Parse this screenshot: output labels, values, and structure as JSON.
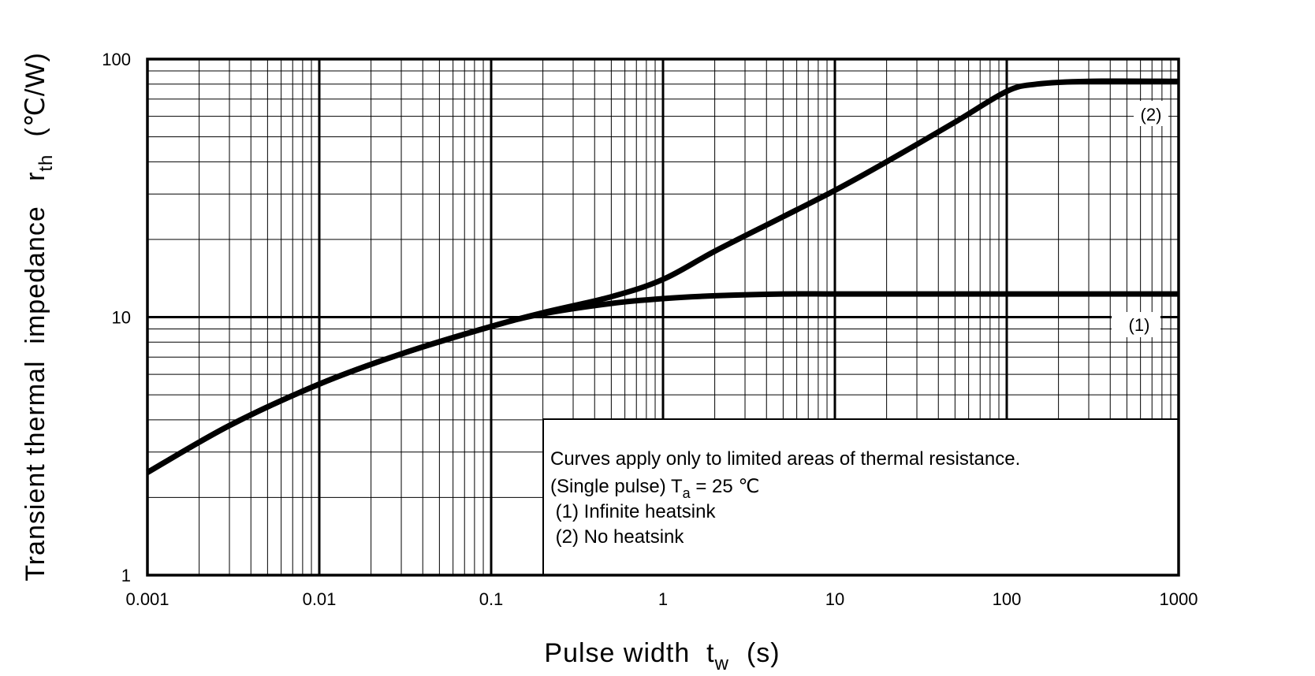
{
  "chart_data": {
    "type": "line",
    "x_scale": "log",
    "y_scale": "log",
    "xlim": [
      0.001,
      1000
    ],
    "ylim": [
      1,
      100
    ],
    "grid": true,
    "x_axis": {
      "title_main": "Pulse width  t",
      "title_sub": "w",
      "title_unit": "(s)",
      "ticks": [
        0.001,
        0.01,
        0.1,
        1,
        10,
        100,
        1000
      ],
      "tick_labels": [
        "0.001",
        "0.01",
        "0.1",
        "1",
        "10",
        "100",
        "1000"
      ]
    },
    "y_axis": {
      "title_main": "Transient thermal  impedance   r",
      "title_sub": "th",
      "title_unit": "(℃/W)",
      "ticks": [
        1,
        10,
        100
      ],
      "tick_labels": [
        "1",
        "10",
        "100"
      ]
    },
    "series": [
      {
        "name": "(1)",
        "x": [
          0.001,
          0.003,
          0.01,
          0.03,
          0.1,
          0.2,
          0.5,
          1,
          2,
          5,
          10,
          30,
          100,
          300,
          1000
        ],
        "y": [
          2.5,
          3.8,
          5.5,
          7.2,
          9.2,
          10.3,
          11.3,
          11.8,
          12.1,
          12.3,
          12.3,
          12.3,
          12.3,
          12.3,
          12.3
        ]
      },
      {
        "name": "(2)",
        "x": [
          0.001,
          0.003,
          0.01,
          0.03,
          0.1,
          0.2,
          0.5,
          1,
          2,
          5,
          10,
          20,
          50,
          100,
          150,
          300,
          1000
        ],
        "y": [
          2.5,
          3.8,
          5.5,
          7.2,
          9.2,
          10.4,
          12.0,
          14.0,
          18.0,
          24.5,
          31.0,
          40.0,
          57.0,
          75.0,
          80.0,
          82.0,
          82.0
        ]
      }
    ],
    "annotation": {
      "line1": "Curves apply only to limited areas of thermal resistance.",
      "line2_prefix": "(Single pulse) T",
      "line2_sub": "a",
      "line2_suffix": " = 25 ℃",
      "line3": " (1) Infinite heatsink",
      "line4": " (2) No heatsink"
    }
  }
}
